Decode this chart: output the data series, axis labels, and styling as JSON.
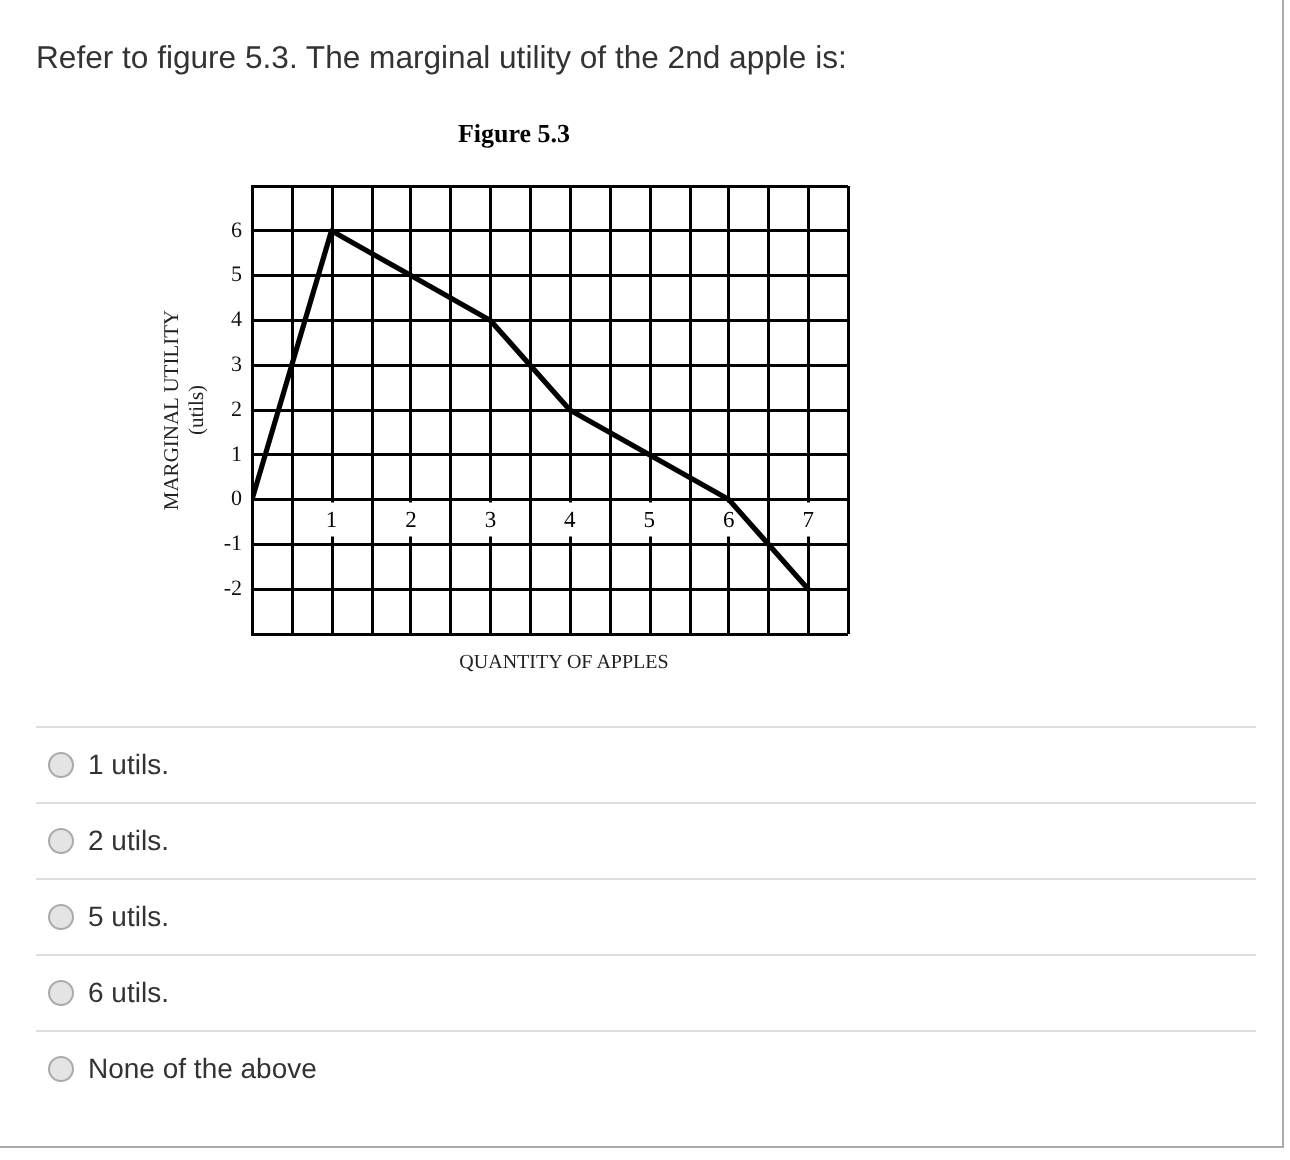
{
  "chart_data": {
    "type": "line",
    "title": "Refer to figure 5.3. The marginal utility of the 2nd apple is:",
    "subtitle": "Figure 5.3",
    "xlabel": "QUANTITY OF APPLES",
    "ylabel": "MARGINAL UTILITY\n(utils)",
    "x": [
      0,
      1,
      2,
      3,
      4,
      5,
      6,
      7
    ],
    "series": [
      {
        "color": "#000000",
        "values": [
          0,
          6,
          5,
          4,
          2,
          1,
          0,
          -2
        ]
      }
    ],
    "xlim": [
      0,
      7.5
    ],
    "xticks": [
      {
        "value": 0,
        "label": null
      },
      {
        "value": 0.5,
        "label": null
      },
      1,
      {
        "value": 1.5,
        "label": null
      },
      2,
      {
        "value": 2.5,
        "label": null
      },
      3,
      {
        "value": 3.5,
        "label": null
      },
      4,
      {
        "value": 4.5,
        "label": null
      },
      5,
      {
        "value": 5.5,
        "label": null
      },
      6,
      {
        "value": 6.5,
        "label": null
      },
      7,
      {
        "value": 7.5,
        "label": null
      }
    ],
    "ylim": [
      -3,
      7
    ],
    "yticks": [
      {
        "value": -3,
        "label": null
      },
      -2,
      -1,
      0,
      1,
      2,
      3,
      4,
      5,
      6,
      {
        "value": 7,
        "label": null
      }
    ],
    "grid": true,
    "marker": "none",
    "line_style": "solid",
    "annotations": [
      "1 utils.",
      "2 utils.",
      "5 utils.",
      "6 utils.",
      "None of the above"
    ]
  }
}
